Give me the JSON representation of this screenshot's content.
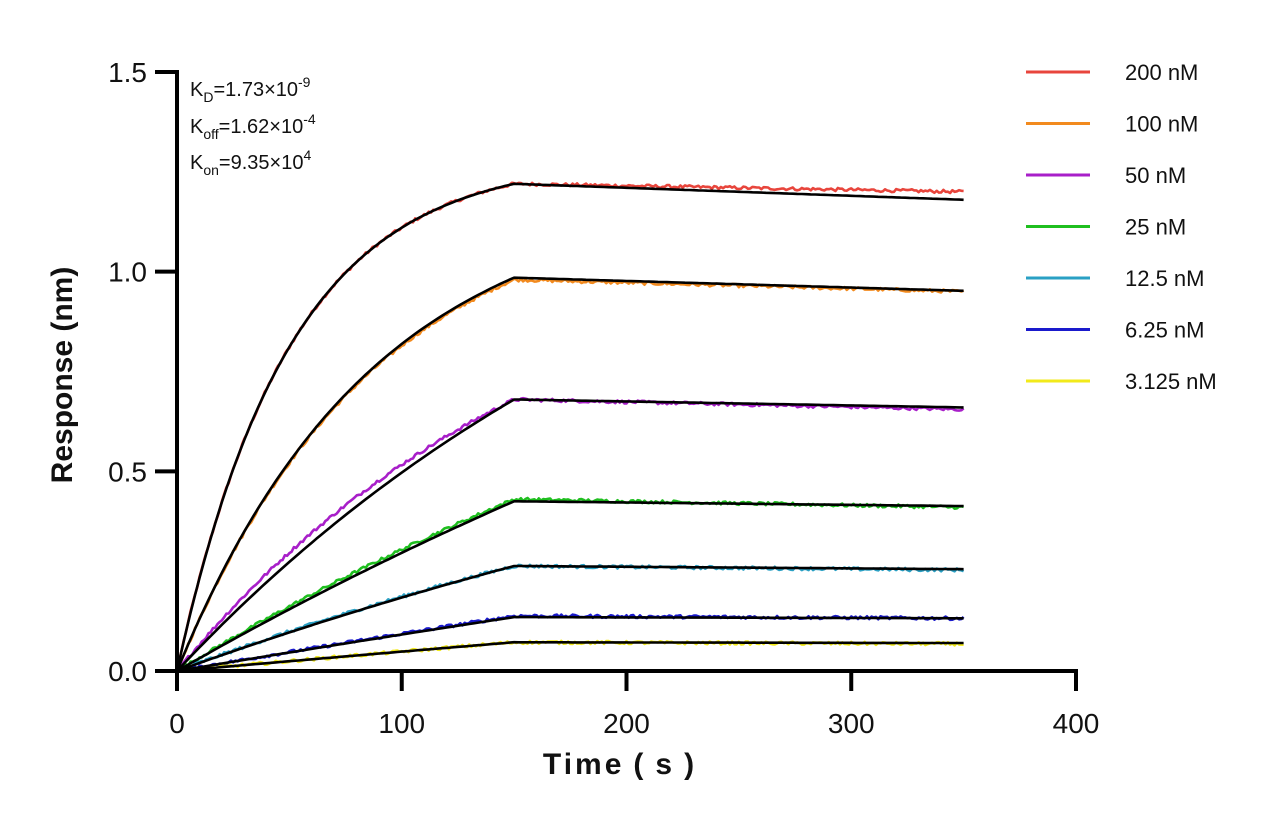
{
  "chart_data": {
    "type": "line",
    "xlabel": "Time ( s )",
    "ylabel": "Response (nm)",
    "xlim": [
      0,
      400
    ],
    "ylim": [
      0,
      1.5
    ],
    "xticks": [
      0,
      100,
      200,
      300,
      400
    ],
    "xtick_labels": [
      "0",
      "100",
      "200",
      "300",
      "400"
    ],
    "yticks": [
      0.0,
      0.5,
      1.0,
      1.5
    ],
    "ytick_labels": [
      "0.0",
      "0.5",
      "1.0",
      "1.5"
    ],
    "grid": false,
    "legend_position": "top-right",
    "kinetics": {
      "kd": {
        "base": "K",
        "sub": "D",
        "text": "=1.73×10",
        "exp": "-9"
      },
      "koff": {
        "base": "K",
        "sub": "off",
        "text": "=1.62×10",
        "exp": "-4"
      },
      "kon": {
        "base": "K",
        "sub": "on",
        "text": "=9.35×10",
        "exp": "4"
      }
    },
    "association_end": 150,
    "dissociation_end": 350,
    "series": [
      {
        "name": "200 nM",
        "color": "#e8453c",
        "assoc_end_value": 1.22,
        "final_value": 1.2,
        "plateau_rate": 0.02
      },
      {
        "name": "100 nM",
        "color": "#f28a1e",
        "assoc_end_value": 0.98,
        "final_value": 0.95,
        "plateau_rate": 0.0115
      },
      {
        "name": "50 nM",
        "color": "#a81fc9",
        "assoc_end_value": 0.68,
        "final_value": 0.655,
        "plateau_rate": 0.006
      },
      {
        "name": "25 nM",
        "color": "#1fbf1f",
        "assoc_end_value": 0.43,
        "final_value": 0.41,
        "plateau_rate": 0.0025
      },
      {
        "name": "12.5 nM",
        "color": "#2aa0c4",
        "assoc_end_value": 0.263,
        "final_value": 0.253,
        "plateau_rate": 0.0025
      },
      {
        "name": "6.25 nM",
        "color": "#1a1acc",
        "assoc_end_value": 0.138,
        "final_value": 0.132,
        "plateau_rate": 0.0006
      },
      {
        "name": "3.125 nM",
        "color": "#f2ea1a",
        "assoc_end_value": 0.072,
        "final_value": 0.068,
        "plateau_rate": 0.0006
      }
    ],
    "fits": [
      {
        "assoc_end_value": 1.22,
        "final_value": 1.18,
        "plateau_rate": 0.02
      },
      {
        "assoc_end_value": 0.985,
        "final_value": 0.952,
        "plateau_rate": 0.0115
      },
      {
        "assoc_end_value": 0.68,
        "final_value": 0.66,
        "plateau_rate": 0.004
      },
      {
        "assoc_end_value": 0.425,
        "final_value": 0.413,
        "plateau_rate": 0.0018
      },
      {
        "assoc_end_value": 0.263,
        "final_value": 0.255,
        "plateau_rate": 0.002
      },
      {
        "assoc_end_value": 0.135,
        "final_value": 0.132,
        "plateau_rate": 0.0006
      },
      {
        "assoc_end_value": 0.072,
        "final_value": 0.07,
        "plateau_rate": 0.0004
      }
    ]
  }
}
